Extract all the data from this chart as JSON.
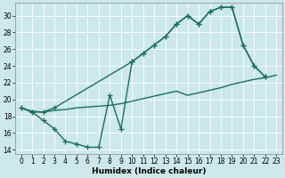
{
  "bg_color": "#cce8e8",
  "grid_color": "#ffffff",
  "line_color": "#1a6e5e",
  "line_width": 1.0,
  "marker": "+",
  "marker_size": 4,
  "marker_lw": 0.9,
  "xlabel": "Humidex (Indice chaleur)",
  "xlabel_fontsize": 6.5,
  "xlabel_fontweight": "bold",
  "tick_fontsize": 5.5,
  "xlim": [
    -0.5,
    23.5
  ],
  "ylim": [
    13.5,
    31.5
  ],
  "yticks": [
    14,
    16,
    18,
    20,
    22,
    24,
    26,
    28,
    30
  ],
  "xticks": [
    0,
    1,
    2,
    3,
    4,
    5,
    6,
    7,
    8,
    9,
    10,
    11,
    12,
    13,
    14,
    15,
    16,
    17,
    18,
    19,
    20,
    21,
    22,
    23
  ],
  "line1_x": [
    0,
    1,
    2,
    3,
    10,
    11,
    12,
    13,
    14,
    15,
    16,
    17,
    18,
    19,
    20,
    21,
    22
  ],
  "line1_y": [
    19,
    18.5,
    18.5,
    19,
    24.5,
    25.5,
    26.5,
    27.5,
    29,
    30,
    29,
    30.5,
    31,
    31,
    26.5,
    24,
    22.7
  ],
  "line2_x": [
    0,
    1,
    2,
    3,
    4,
    5,
    6,
    7,
    8,
    9,
    10,
    11,
    12,
    13,
    14,
    15,
    16,
    17,
    18,
    19,
    20,
    21,
    22
  ],
  "line2_y": [
    19,
    18.5,
    17.5,
    16.5,
    15,
    14.7,
    14.3,
    14.3,
    20.5,
    16.5,
    24.5,
    25.5,
    26.5,
    27.5,
    29,
    30,
    29,
    30.5,
    31,
    31,
    26.5,
    24,
    22.7
  ],
  "line3_x": [
    0,
    1,
    2,
    3,
    4,
    5,
    6,
    7,
    8,
    9,
    10,
    11,
    12,
    13,
    14,
    15,
    16,
    17,
    18,
    19,
    20,
    21,
    22,
    23
  ],
  "line3_y": [
    19,
    18.6,
    18.5,
    18.7,
    18.8,
    19.0,
    19.1,
    19.2,
    19.3,
    19.5,
    19.8,
    20.1,
    20.4,
    20.7,
    21.0,
    20.5,
    20.8,
    21.1,
    21.4,
    21.8,
    22.1,
    22.4,
    22.6,
    22.9
  ]
}
